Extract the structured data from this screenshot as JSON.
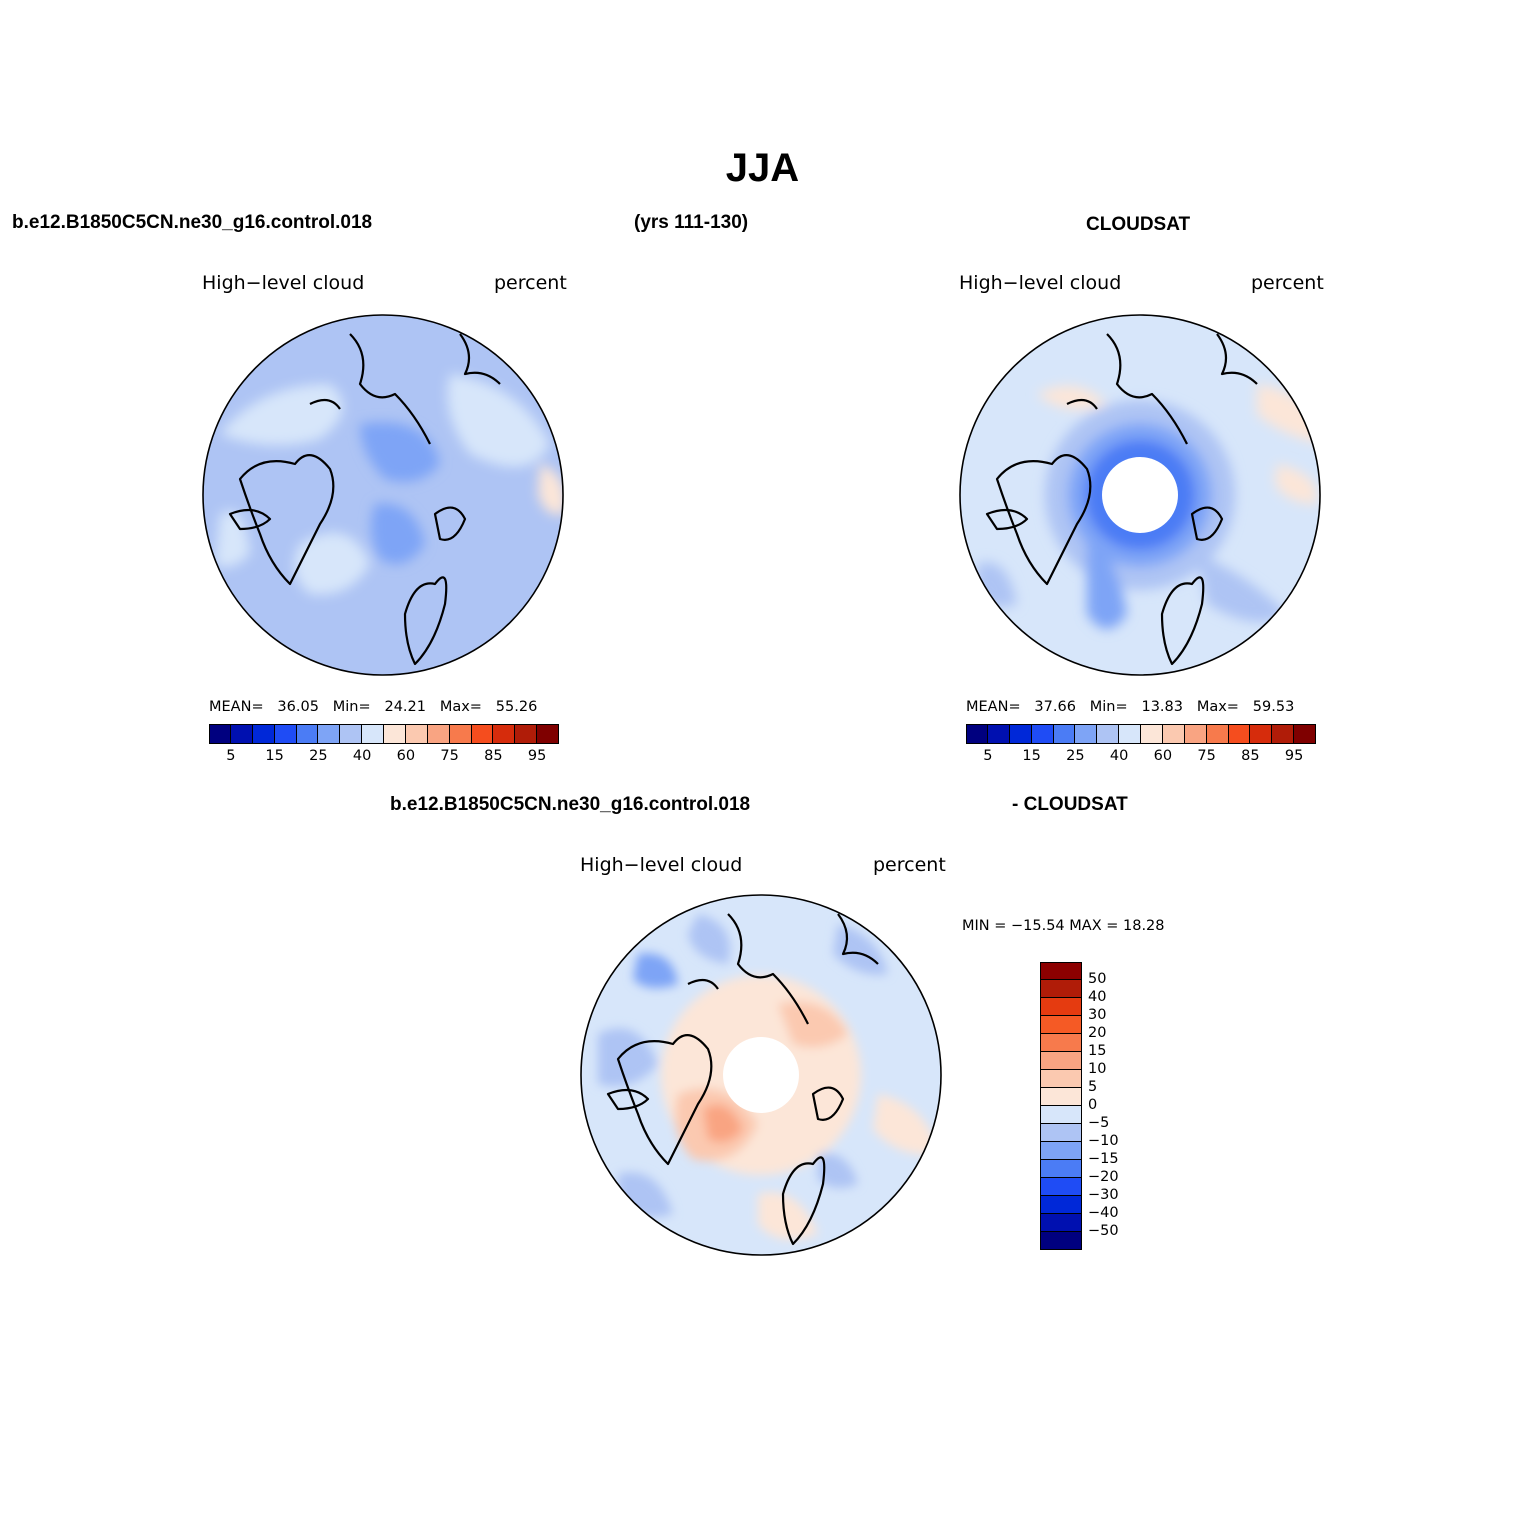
{
  "title": "JJA",
  "top_left_header": "b.e12.B1850C5CN.ne30_g16.control.018",
  "top_years": "(yrs 111-130)",
  "top_right_header": "CLOUDSAT",
  "bottom_header_left": "b.e12.B1850C5CN.ne30_g16.control.018",
  "bottom_header_right": "- CLOUDSAT",
  "panels": {
    "model": {
      "left_label": "High−level cloud",
      "right_label": "percent",
      "mean_label": "MEAN=",
      "mean": "36.05",
      "min_label": "Min=",
      "min": "24.21",
      "max_label": "Max=",
      "max": "55.26"
    },
    "obs": {
      "left_label": "High−level cloud",
      "right_label": "percent",
      "mean_label": "MEAN=",
      "mean": "37.66",
      "min_label": "Min=",
      "min": "13.83",
      "max_label": "Max=",
      "max": "59.53"
    },
    "diff": {
      "left_label": "High−level cloud",
      "right_label": "percent",
      "minmax": "MIN = −15.54 MAX =   18.28"
    }
  },
  "colorbar": {
    "colors": [
      "#00007f",
      "#0010b0",
      "#0028d8",
      "#1f4cf5",
      "#4b7cf5",
      "#7ea4f6",
      "#aec4f4",
      "#d7e6fa",
      "#fce6d8",
      "#fbc9b0",
      "#f9a482",
      "#f77a4c",
      "#f54d1e",
      "#d62c0c",
      "#b01c08",
      "#7f0000"
    ],
    "ticks": [
      "5",
      "15",
      "25",
      "40",
      "60",
      "75",
      "85",
      "95"
    ]
  },
  "diff_colorbar": {
    "colors_top_to_bottom": [
      "#8c0000",
      "#b01c08",
      "#e53b10",
      "#f55a25",
      "#f77a4c",
      "#f9a482",
      "#fbc9b0",
      "#fce6d8",
      "#d7e6fa",
      "#aec4f4",
      "#7ea4f6",
      "#4b7cf5",
      "#1f4cf5",
      "#0028d8",
      "#0010b0",
      "#00007f"
    ],
    "labels": [
      "50",
      "40",
      "30",
      "20",
      "15",
      "10",
      "5",
      "0",
      "−5",
      "−10",
      "−15",
      "−20",
      "−30",
      "−40",
      "−50"
    ]
  }
}
